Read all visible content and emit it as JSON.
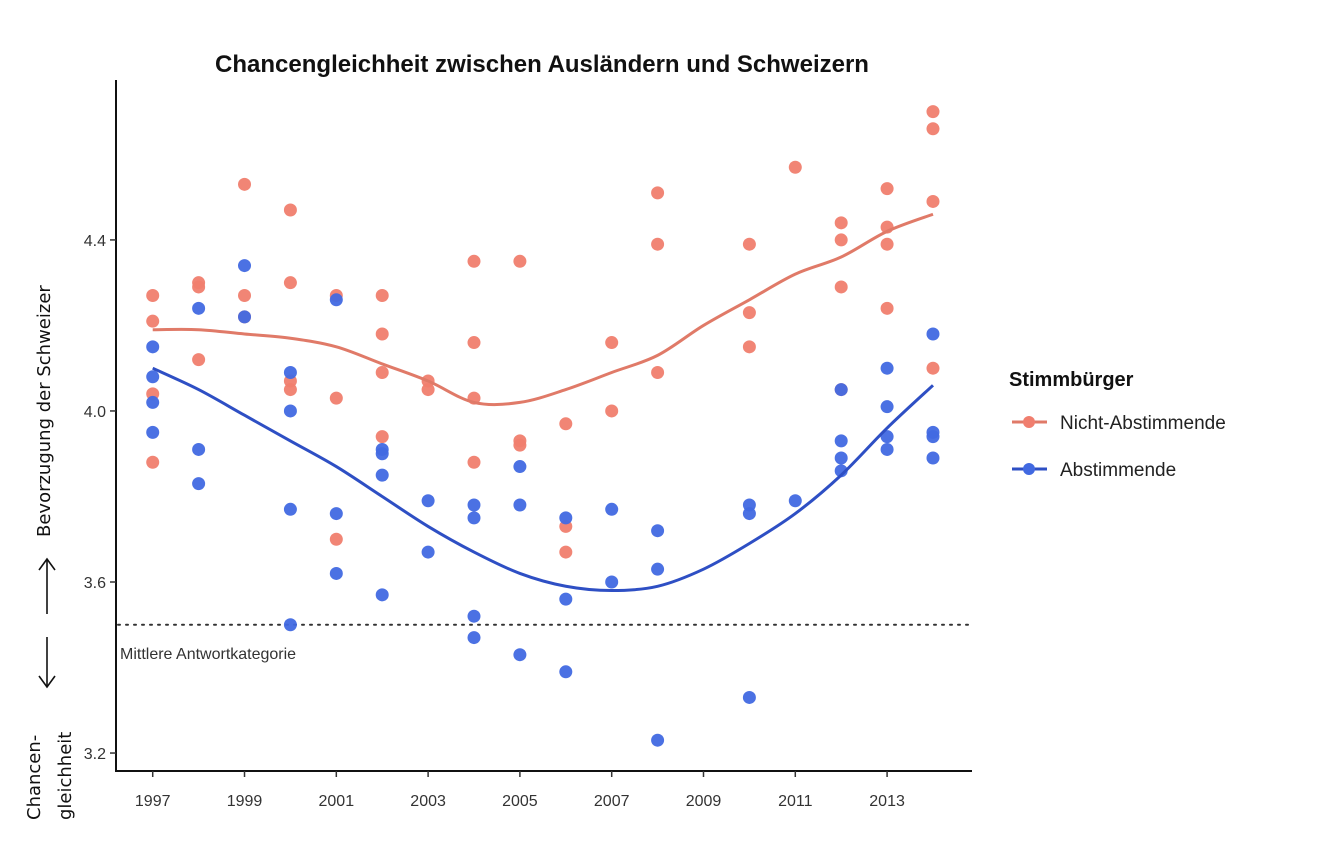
{
  "chart_data": {
    "type": "scatter",
    "title": "Chancengleichheit zwischen Ausländern und Schweizern",
    "xlabel": "",
    "ylabel": "",
    "xlim": [
      1996.2,
      2014.85
    ],
    "ylim": [
      3.158,
      4.774
    ],
    "x_ticks": [
      1997,
      1999,
      2001,
      2003,
      2005,
      2007,
      2009,
      2011,
      2013
    ],
    "x_tick_labels": [
      "1997",
      "1999",
      "2001",
      "2003",
      "2005",
      "2007",
      "2009",
      "2011",
      "2013"
    ],
    "y_ticks": [
      3.2,
      3.6,
      4.0,
      4.4
    ],
    "y_tick_labels": [
      "3.2",
      "3.6",
      "4.0",
      "4.4"
    ],
    "grid": false,
    "legend": {
      "title": "Stimmbürger",
      "placement": "right",
      "entries": [
        {
          "label": "Nicht-Abstimmende",
          "color": "#F07E6E"
        },
        {
          "label": "Abstimmende",
          "color": "#4169E1"
        }
      ]
    },
    "reference_line": {
      "y": 3.5,
      "style": "dotted",
      "label": "Mittlere Antwortkategorie"
    },
    "side_annotations": {
      "upper": "Bevorzugung der Schweizer",
      "lower_line1": "Chancen-",
      "lower_line2": "gleichheit",
      "arrow_up": "up-arrow",
      "arrow_down": "down-arrow"
    },
    "series": [
      {
        "name": "Nicht-Abstimmende",
        "color": "#F07E6E",
        "line_color": "#E07A68",
        "points": [
          [
            1997,
            4.27
          ],
          [
            1997,
            4.21
          ],
          [
            1997,
            4.04
          ],
          [
            1997,
            3.88
          ],
          [
            1998,
            4.3
          ],
          [
            1998,
            4.29
          ],
          [
            1998,
            4.12
          ],
          [
            1999,
            4.53
          ],
          [
            1999,
            4.27
          ],
          [
            1999,
            4.22
          ],
          [
            2000,
            4.47
          ],
          [
            2000,
            4.3
          ],
          [
            2000,
            4.07
          ],
          [
            2000,
            4.05
          ],
          [
            2001,
            4.27
          ],
          [
            2001,
            4.03
          ],
          [
            2001,
            3.7
          ],
          [
            2002,
            4.27
          ],
          [
            2002,
            4.18
          ],
          [
            2002,
            4.09
          ],
          [
            2002,
            3.94
          ],
          [
            2003,
            4.07
          ],
          [
            2003,
            4.05
          ],
          [
            2004,
            4.35
          ],
          [
            2004,
            4.16
          ],
          [
            2004,
            4.03
          ],
          [
            2004,
            3.88
          ],
          [
            2005,
            4.35
          ],
          [
            2005,
            3.93
          ],
          [
            2005,
            3.92
          ],
          [
            2006,
            3.97
          ],
          [
            2006,
            3.73
          ],
          [
            2006,
            3.67
          ],
          [
            2007,
            4.16
          ],
          [
            2007,
            4.0
          ],
          [
            2008,
            4.51
          ],
          [
            2008,
            4.39
          ],
          [
            2008,
            4.09
          ],
          [
            2010,
            4.39
          ],
          [
            2010,
            4.23
          ],
          [
            2010,
            4.15
          ],
          [
            2011,
            4.57
          ],
          [
            2012,
            4.44
          ],
          [
            2012,
            4.4
          ],
          [
            2012,
            4.29
          ],
          [
            2012,
            4.05
          ],
          [
            2013,
            4.52
          ],
          [
            2013,
            4.43
          ],
          [
            2013,
            4.39
          ],
          [
            2013,
            4.24
          ],
          [
            2014,
            4.7
          ],
          [
            2014,
            4.66
          ],
          [
            2014,
            4.49
          ],
          [
            2014,
            4.1
          ]
        ],
        "smooth": [
          [
            1997,
            4.19
          ],
          [
            1998,
            4.19
          ],
          [
            1999,
            4.18
          ],
          [
            2000,
            4.17
          ],
          [
            2001,
            4.15
          ],
          [
            2002,
            4.11
          ],
          [
            2003,
            4.07
          ],
          [
            2004,
            4.02
          ],
          [
            2005,
            4.02
          ],
          [
            2006,
            4.05
          ],
          [
            2007,
            4.09
          ],
          [
            2008,
            4.13
          ],
          [
            2009,
            4.2
          ],
          [
            2010,
            4.26
          ],
          [
            2011,
            4.32
          ],
          [
            2012,
            4.36
          ],
          [
            2013,
            4.42
          ],
          [
            2014,
            4.46
          ]
        ]
      },
      {
        "name": "Abstimmende",
        "color": "#4169E1",
        "line_color": "#2E4FC4",
        "points": [
          [
            1997,
            4.15
          ],
          [
            1997,
            4.08
          ],
          [
            1997,
            4.02
          ],
          [
            1997,
            3.95
          ],
          [
            1998,
            4.24
          ],
          [
            1998,
            3.91
          ],
          [
            1998,
            3.83
          ],
          [
            1999,
            4.34
          ],
          [
            1999,
            4.22
          ],
          [
            2000,
            4.09
          ],
          [
            2000,
            4.0
          ],
          [
            2000,
            3.77
          ],
          [
            2000,
            3.5
          ],
          [
            2001,
            4.26
          ],
          [
            2001,
            3.76
          ],
          [
            2001,
            3.62
          ],
          [
            2002,
            3.91
          ],
          [
            2002,
            3.9
          ],
          [
            2002,
            3.85
          ],
          [
            2002,
            3.57
          ],
          [
            2003,
            3.79
          ],
          [
            2003,
            3.67
          ],
          [
            2004,
            3.78
          ],
          [
            2004,
            3.75
          ],
          [
            2004,
            3.52
          ],
          [
            2004,
            3.47
          ],
          [
            2005,
            3.87
          ],
          [
            2005,
            3.78
          ],
          [
            2005,
            3.43
          ],
          [
            2006,
            3.75
          ],
          [
            2006,
            3.56
          ],
          [
            2006,
            3.39
          ],
          [
            2007,
            3.77
          ],
          [
            2007,
            3.6
          ],
          [
            2008,
            3.72
          ],
          [
            2008,
            3.63
          ],
          [
            2008,
            3.23
          ],
          [
            2010,
            3.78
          ],
          [
            2010,
            3.76
          ],
          [
            2010,
            3.33
          ],
          [
            2011,
            3.79
          ],
          [
            2012,
            4.05
          ],
          [
            2012,
            3.93
          ],
          [
            2012,
            3.89
          ],
          [
            2012,
            3.86
          ],
          [
            2013,
            4.1
          ],
          [
            2013,
            4.01
          ],
          [
            2013,
            3.94
          ],
          [
            2013,
            3.91
          ],
          [
            2014,
            4.18
          ],
          [
            2014,
            3.95
          ],
          [
            2014,
            3.94
          ],
          [
            2014,
            3.89
          ]
        ],
        "smooth": [
          [
            1997,
            4.1
          ],
          [
            1998,
            4.05
          ],
          [
            1999,
            3.99
          ],
          [
            2000,
            3.93
          ],
          [
            2001,
            3.87
          ],
          [
            2002,
            3.8
          ],
          [
            2003,
            3.73
          ],
          [
            2004,
            3.67
          ],
          [
            2005,
            3.62
          ],
          [
            2006,
            3.59
          ],
          [
            2007,
            3.58
          ],
          [
            2008,
            3.59
          ],
          [
            2009,
            3.63
          ],
          [
            2010,
            3.69
          ],
          [
            2011,
            3.76
          ],
          [
            2012,
            3.85
          ],
          [
            2013,
            3.96
          ],
          [
            2014,
            4.06
          ]
        ]
      }
    ]
  }
}
